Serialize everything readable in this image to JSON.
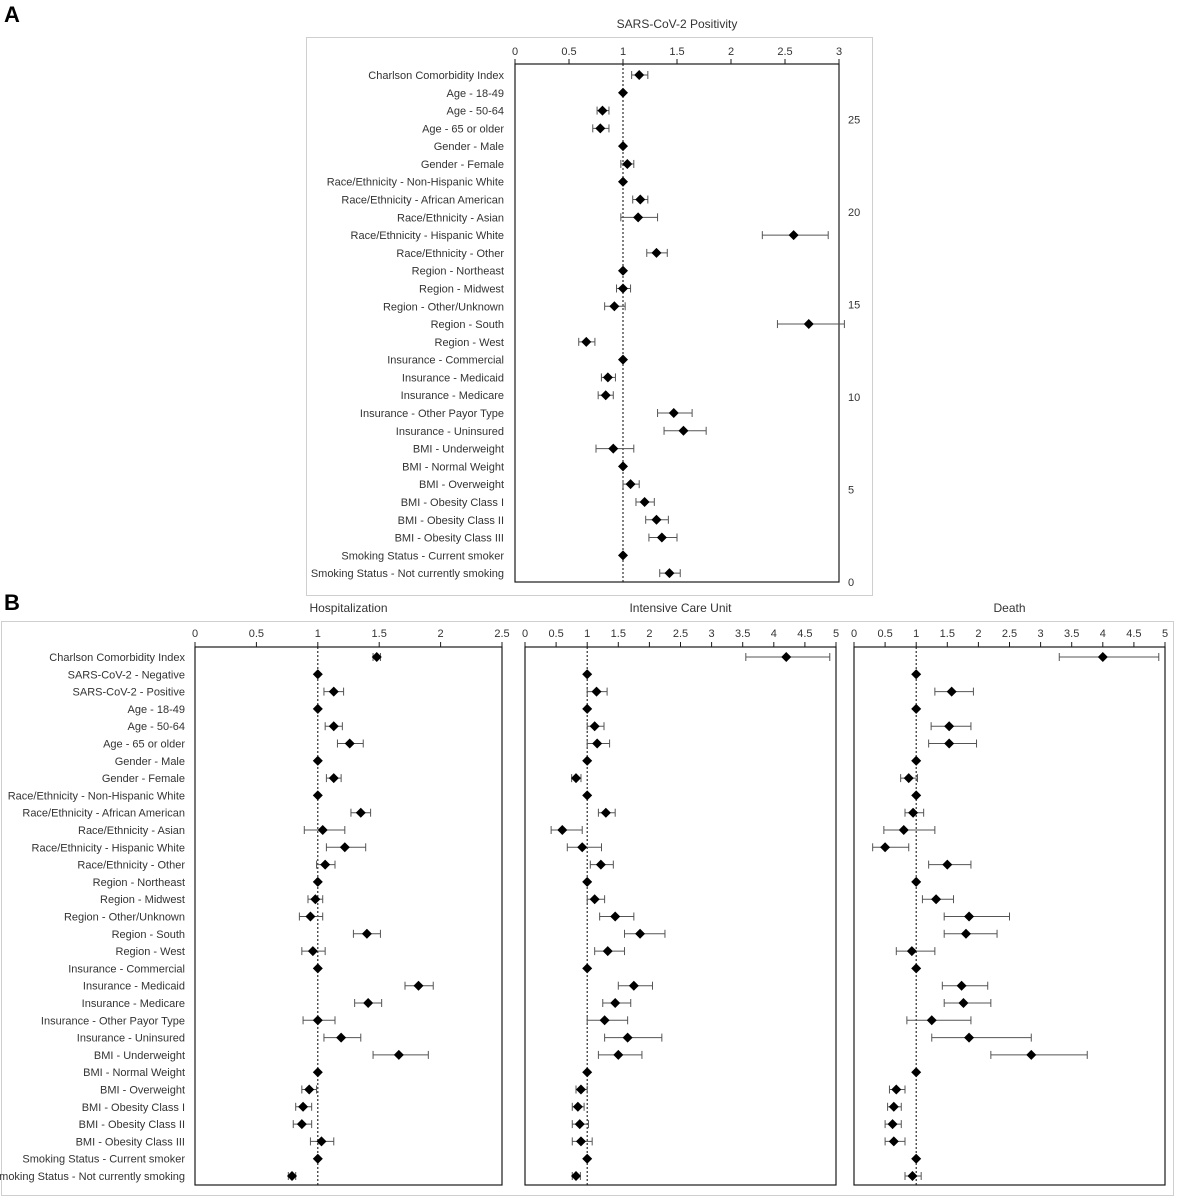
{
  "panel_labels": [
    "A",
    "B"
  ],
  "chart_data": [
    {
      "type": "forest",
      "panel": "A",
      "title": "SARS-CoV-2 Positivity",
      "xlim": [
        0,
        3
      ],
      "xticks": [
        "0",
        "0.5",
        "1",
        "1.5",
        "2",
        "2.5",
        "3"
      ],
      "xtick_values": [
        0,
        0.5,
        1,
        1.5,
        2,
        2.5,
        3
      ],
      "reference_line": 1,
      "right_axis": {
        "ticks": [
          "25",
          "20",
          "15",
          "10",
          "5",
          "0"
        ],
        "tick_values": [
          25,
          20,
          15,
          10,
          5,
          0
        ],
        "range": [
          0,
          28
        ]
      },
      "rows": [
        {
          "label": "Charlson Comorbidity Index",
          "est": 1.15,
          "lo": 1.08,
          "hi": 1.23
        },
        {
          "label": "Age - 18-49",
          "est": 1.0,
          "lo": 1.0,
          "hi": 1.0
        },
        {
          "label": "Age - 50-64",
          "est": 0.81,
          "lo": 0.76,
          "hi": 0.87
        },
        {
          "label": "Age - 65 or older",
          "est": 0.79,
          "lo": 0.72,
          "hi": 0.87
        },
        {
          "label": "Gender - Male",
          "est": 1.0,
          "lo": 1.0,
          "hi": 1.0
        },
        {
          "label": "Gender - Female",
          "est": 1.04,
          "lo": 0.98,
          "hi": 1.1
        },
        {
          "label": "Race/Ethnicity - Non-Hispanic White",
          "est": 1.0,
          "lo": 1.0,
          "hi": 1.0
        },
        {
          "label": "Race/Ethnicity - African American",
          "est": 1.16,
          "lo": 1.09,
          "hi": 1.23
        },
        {
          "label": "Race/Ethnicity - Asian",
          "est": 1.14,
          "lo": 0.98,
          "hi": 1.32
        },
        {
          "label": "Race/Ethnicity - Hispanic White",
          "est": 2.58,
          "lo": 2.29,
          "hi": 2.9
        },
        {
          "label": "Race/Ethnicity - Other",
          "est": 1.31,
          "lo": 1.22,
          "hi": 1.41
        },
        {
          "label": "Region - Northeast",
          "est": 1.0,
          "lo": 1.0,
          "hi": 1.0
        },
        {
          "label": "Region - Midwest",
          "est": 1.0,
          "lo": 0.94,
          "hi": 1.07
        },
        {
          "label": "Region - Other/Unknown",
          "est": 0.92,
          "lo": 0.83,
          "hi": 1.02
        },
        {
          "label": "Region - South",
          "est": 2.72,
          "lo": 2.43,
          "hi": 3.05
        },
        {
          "label": "Region - West",
          "est": 0.66,
          "lo": 0.59,
          "hi": 0.74
        },
        {
          "label": "Insurance - Commercial",
          "est": 1.0,
          "lo": 1.0,
          "hi": 1.0
        },
        {
          "label": "Insurance - Medicaid",
          "est": 0.86,
          "lo": 0.8,
          "hi": 0.93
        },
        {
          "label": "Insurance - Medicare",
          "est": 0.84,
          "lo": 0.77,
          "hi": 0.91
        },
        {
          "label": "Insurance - Other Payor Type",
          "est": 1.47,
          "lo": 1.32,
          "hi": 1.64
        },
        {
          "label": "Insurance - Uninsured",
          "est": 1.56,
          "lo": 1.38,
          "hi": 1.77
        },
        {
          "label": "BMI - Underweight",
          "est": 0.91,
          "lo": 0.75,
          "hi": 1.1
        },
        {
          "label": "BMI - Normal Weight",
          "est": 1.0,
          "lo": 1.0,
          "hi": 1.0
        },
        {
          "label": "BMI - Overweight",
          "est": 1.07,
          "lo": 1.0,
          "hi": 1.15
        },
        {
          "label": "BMI - Obesity Class I",
          "est": 1.2,
          "lo": 1.12,
          "hi": 1.29
        },
        {
          "label": "BMI - Obesity Class II",
          "est": 1.31,
          "lo": 1.21,
          "hi": 1.42
        },
        {
          "label": "BMI - Obesity Class III",
          "est": 1.36,
          "lo": 1.24,
          "hi": 1.5
        },
        {
          "label": "Smoking Status - Current smoker",
          "est": 1.0,
          "lo": 1.0,
          "hi": 1.0
        },
        {
          "label": "Smoking Status - Not currently smoking",
          "est": 1.43,
          "lo": 1.34,
          "hi": 1.53
        }
      ]
    },
    {
      "type": "forest",
      "panel": "B",
      "title": "Hospitalization",
      "xlim": [
        0,
        2.5
      ],
      "xticks": [
        "0",
        "0.5",
        "1",
        "1.5",
        "2",
        "2.5"
      ],
      "xtick_values": [
        0,
        0.5,
        1,
        1.5,
        2,
        2.5
      ],
      "reference_line": 1,
      "show_labels": true,
      "rows": [
        {
          "label": "Charlson Comorbidity Index",
          "est": 1.48,
          "lo": 1.45,
          "hi": 1.51
        },
        {
          "label": "SARS-CoV-2 - Negative",
          "est": 1.0,
          "lo": 1.0,
          "hi": 1.0
        },
        {
          "label": "SARS-CoV-2 - Positive",
          "est": 1.13,
          "lo": 1.05,
          "hi": 1.21
        },
        {
          "label": "Age - 18-49",
          "est": 1.0,
          "lo": 1.0,
          "hi": 1.0
        },
        {
          "label": "Age - 50-64",
          "est": 1.13,
          "lo": 1.06,
          "hi": 1.2
        },
        {
          "label": "Age - 65 or older",
          "est": 1.26,
          "lo": 1.16,
          "hi": 1.37
        },
        {
          "label": "Gender - Male",
          "est": 1.0,
          "lo": 1.0,
          "hi": 1.0
        },
        {
          "label": "Gender - Female",
          "est": 1.13,
          "lo": 1.07,
          "hi": 1.19
        },
        {
          "label": "Race/Ethnicity - Non-Hispanic White",
          "est": 1.0,
          "lo": 1.0,
          "hi": 1.0
        },
        {
          "label": "Race/Ethnicity - African American",
          "est": 1.35,
          "lo": 1.27,
          "hi": 1.43
        },
        {
          "label": "Race/Ethnicity - Asian",
          "est": 1.04,
          "lo": 0.89,
          "hi": 1.22
        },
        {
          "label": "Race/Ethnicity - Hispanic White",
          "est": 1.22,
          "lo": 1.07,
          "hi": 1.39
        },
        {
          "label": "Race/Ethnicity - Other",
          "est": 1.06,
          "lo": 0.99,
          "hi": 1.14
        },
        {
          "label": "Region - Northeast",
          "est": 1.0,
          "lo": 1.0,
          "hi": 1.0
        },
        {
          "label": "Region - Midwest",
          "est": 0.98,
          "lo": 0.92,
          "hi": 1.04
        },
        {
          "label": "Region - Other/Unknown",
          "est": 0.94,
          "lo": 0.85,
          "hi": 1.04
        },
        {
          "label": "Region - South",
          "est": 1.4,
          "lo": 1.29,
          "hi": 1.51
        },
        {
          "label": "Region - West",
          "est": 0.96,
          "lo": 0.87,
          "hi": 1.06
        },
        {
          "label": "Insurance - Commercial",
          "est": 1.0,
          "lo": 1.0,
          "hi": 1.0
        },
        {
          "label": "Insurance - Medicaid",
          "est": 1.82,
          "lo": 1.71,
          "hi": 1.94
        },
        {
          "label": "Insurance - Medicare",
          "est": 1.41,
          "lo": 1.3,
          "hi": 1.52
        },
        {
          "label": "Insurance - Other Payor Type",
          "est": 1.0,
          "lo": 0.88,
          "hi": 1.14
        },
        {
          "label": "Insurance - Uninsured",
          "est": 1.19,
          "lo": 1.05,
          "hi": 1.35
        },
        {
          "label": "BMI - Underweight",
          "est": 1.66,
          "lo": 1.45,
          "hi": 1.9
        },
        {
          "label": "BMI - Normal Weight",
          "est": 1.0,
          "lo": 1.0,
          "hi": 1.0
        },
        {
          "label": "BMI - Overweight",
          "est": 0.93,
          "lo": 0.87,
          "hi": 0.99
        },
        {
          "label": "BMI - Obesity Class I",
          "est": 0.88,
          "lo": 0.82,
          "hi": 0.95
        },
        {
          "label": "BMI - Obesity Class II",
          "est": 0.87,
          "lo": 0.8,
          "hi": 0.95
        },
        {
          "label": "BMI - Obesity Class III",
          "est": 1.03,
          "lo": 0.94,
          "hi": 1.13
        },
        {
          "label": "Smoking Status - Current smoker",
          "est": 1.0,
          "lo": 1.0,
          "hi": 1.0
        },
        {
          "label": "Smoking Status - Not currently smoking",
          "est": 0.79,
          "lo": 0.76,
          "hi": 0.82
        }
      ]
    },
    {
      "type": "forest",
      "panel": "B",
      "title": "Intensive Care Unit",
      "xlim": [
        0,
        5
      ],
      "xticks": [
        "0",
        "0.5",
        "1",
        "1.5",
        "2",
        "2.5",
        "3",
        "3.5",
        "4",
        "4.5",
        "5"
      ],
      "xtick_values": [
        0,
        0.5,
        1,
        1.5,
        2,
        2.5,
        3,
        3.5,
        4,
        4.5,
        5
      ],
      "reference_line": 1,
      "show_labels": false,
      "rows": [
        {
          "est": 4.2,
          "lo": 3.55,
          "hi": 4.9
        },
        {
          "est": 1.0,
          "lo": 1.0,
          "hi": 1.0
        },
        {
          "est": 1.15,
          "lo": 1.0,
          "hi": 1.32
        },
        {
          "est": 1.0,
          "lo": 1.0,
          "hi": 1.0
        },
        {
          "est": 1.12,
          "lo": 1.0,
          "hi": 1.27
        },
        {
          "est": 1.16,
          "lo": 1.0,
          "hi": 1.36
        },
        {
          "est": 1.0,
          "lo": 1.0,
          "hi": 1.0
        },
        {
          "est": 0.82,
          "lo": 0.75,
          "hi": 0.9
        },
        {
          "est": 1.0,
          "lo": 1.0,
          "hi": 1.0
        },
        {
          "est": 1.3,
          "lo": 1.18,
          "hi": 1.45
        },
        {
          "est": 0.6,
          "lo": 0.42,
          "hi": 0.92
        },
        {
          "est": 0.92,
          "lo": 0.68,
          "hi": 1.23
        },
        {
          "est": 1.22,
          "lo": 1.05,
          "hi": 1.42
        },
        {
          "est": 1.0,
          "lo": 1.0,
          "hi": 1.0
        },
        {
          "est": 1.12,
          "lo": 1.0,
          "hi": 1.28
        },
        {
          "est": 1.45,
          "lo": 1.2,
          "hi": 1.75
        },
        {
          "est": 1.85,
          "lo": 1.6,
          "hi": 2.25
        },
        {
          "est": 1.33,
          "lo": 1.12,
          "hi": 1.6
        },
        {
          "est": 1.0,
          "lo": 1.0,
          "hi": 1.0
        },
        {
          "est": 1.75,
          "lo": 1.5,
          "hi": 2.05
        },
        {
          "est": 1.45,
          "lo": 1.25,
          "hi": 1.7
        },
        {
          "est": 1.28,
          "lo": 1.0,
          "hi": 1.65
        },
        {
          "est": 1.65,
          "lo": 1.28,
          "hi": 2.2
        },
        {
          "est": 1.5,
          "lo": 1.18,
          "hi": 1.88
        },
        {
          "est": 1.0,
          "lo": 1.0,
          "hi": 1.0
        },
        {
          "est": 0.9,
          "lo": 0.82,
          "hi": 1.0
        },
        {
          "est": 0.85,
          "lo": 0.76,
          "hi": 0.95
        },
        {
          "est": 0.88,
          "lo": 0.76,
          "hi": 1.02
        },
        {
          "est": 0.9,
          "lo": 0.76,
          "hi": 1.08
        },
        {
          "est": 1.0,
          "lo": 1.0,
          "hi": 1.0
        },
        {
          "est": 0.82,
          "lo": 0.76,
          "hi": 0.89
        }
      ]
    },
    {
      "type": "forest",
      "panel": "B",
      "title": "Death",
      "xlim": [
        0,
        5
      ],
      "xticks": [
        "0",
        "0.5",
        "1",
        "1.5",
        "2",
        "2.5",
        "3",
        "3.5",
        "4",
        "4.5",
        "5"
      ],
      "xtick_values": [
        0,
        0.5,
        1,
        1.5,
        2,
        2.5,
        3,
        3.5,
        4,
        4.5,
        5
      ],
      "reference_line": 1,
      "show_labels": false,
      "rows": [
        {
          "est": 4.0,
          "lo": 3.3,
          "hi": 4.9
        },
        {
          "est": 1.0,
          "lo": 1.0,
          "hi": 1.0
        },
        {
          "est": 1.57,
          "lo": 1.3,
          "hi": 1.92
        },
        {
          "est": 1.0,
          "lo": 1.0,
          "hi": 1.0
        },
        {
          "est": 1.53,
          "lo": 1.24,
          "hi": 1.88
        },
        {
          "est": 1.53,
          "lo": 1.2,
          "hi": 1.97
        },
        {
          "est": 1.0,
          "lo": 1.0,
          "hi": 1.0
        },
        {
          "est": 0.88,
          "lo": 0.75,
          "hi": 1.02
        },
        {
          "est": 1.0,
          "lo": 1.0,
          "hi": 1.0
        },
        {
          "est": 0.95,
          "lo": 0.82,
          "hi": 1.12
        },
        {
          "est": 0.8,
          "lo": 0.48,
          "hi": 1.3
        },
        {
          "est": 0.5,
          "lo": 0.3,
          "hi": 0.88
        },
        {
          "est": 1.5,
          "lo": 1.2,
          "hi": 1.88
        },
        {
          "est": 1.0,
          "lo": 1.0,
          "hi": 1.0
        },
        {
          "est": 1.32,
          "lo": 1.1,
          "hi": 1.6
        },
        {
          "est": 1.85,
          "lo": 1.45,
          "hi": 2.5
        },
        {
          "est": 1.8,
          "lo": 1.45,
          "hi": 2.3
        },
        {
          "est": 0.93,
          "lo": 0.68,
          "hi": 1.3
        },
        {
          "est": 1.0,
          "lo": 1.0,
          "hi": 1.0
        },
        {
          "est": 1.73,
          "lo": 1.42,
          "hi": 2.15
        },
        {
          "est": 1.76,
          "lo": 1.45,
          "hi": 2.2
        },
        {
          "est": 1.25,
          "lo": 0.85,
          "hi": 1.88
        },
        {
          "est": 1.85,
          "lo": 1.25,
          "hi": 2.85
        },
        {
          "est": 2.85,
          "lo": 2.2,
          "hi": 3.75
        },
        {
          "est": 1.0,
          "lo": 1.0,
          "hi": 1.0
        },
        {
          "est": 0.68,
          "lo": 0.57,
          "hi": 0.82
        },
        {
          "est": 0.64,
          "lo": 0.54,
          "hi": 0.76
        },
        {
          "est": 0.62,
          "lo": 0.5,
          "hi": 0.76
        },
        {
          "est": 0.64,
          "lo": 0.5,
          "hi": 0.82
        },
        {
          "est": 1.0,
          "lo": 1.0,
          "hi": 1.0
        },
        {
          "est": 0.94,
          "lo": 0.82,
          "hi": 1.08
        }
      ]
    }
  ]
}
